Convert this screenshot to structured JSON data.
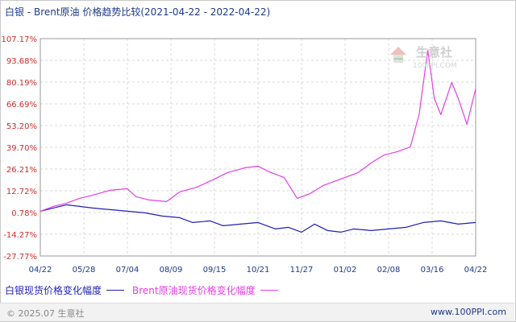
{
  "title": "白银 - Brent原油 价格趋势比较(2021-04-22 - 2022-04-22)",
  "watermark": {
    "text": "生意社",
    "url": "100PPI.COM"
  },
  "footer": {
    "copyright": "© 2025.07 生意社",
    "website": "www.100PPI.com"
  },
  "colors": {
    "silver": "#1f1fb4",
    "brent": "#e63ee6",
    "axis_red": "#d22a2a",
    "axis_blue": "#1e3a8a"
  },
  "chart_data": {
    "type": "line",
    "title": "白银 - Brent原油 价格趋势比较(2021-04-22 - 2022-04-22)",
    "ylim": [
      -27.77,
      107.17
    ],
    "y_ticks": [
      "107.17%",
      "93.68%",
      "80.19%",
      "66.69%",
      "53.20%",
      "39.70%",
      "26.21%",
      "12.72%",
      "0.78%",
      "-14.27%",
      "-27.77%"
    ],
    "x_ticks": [
      "04/22",
      "05/28",
      "07/04",
      "08/09",
      "09/15",
      "10/21",
      "11/27",
      "01/02",
      "02/08",
      "03/16",
      "04/22"
    ],
    "grid": true,
    "legend_position": "bottom-left",
    "series": [
      {
        "name": "白银现货价格变化幅度",
        "color": "#1f1fb4",
        "points": [
          [
            0,
            0
          ],
          [
            0.3,
            2
          ],
          [
            0.6,
            4
          ],
          [
            0.9,
            3
          ],
          [
            1.2,
            2
          ],
          [
            1.6,
            1
          ],
          [
            2.0,
            0
          ],
          [
            2.4,
            -1
          ],
          [
            2.8,
            -3
          ],
          [
            3.2,
            -4
          ],
          [
            3.5,
            -7
          ],
          [
            3.9,
            -6
          ],
          [
            4.2,
            -9
          ],
          [
            4.6,
            -8
          ],
          [
            5.0,
            -7
          ],
          [
            5.4,
            -11
          ],
          [
            5.7,
            -10
          ],
          [
            6.0,
            -13
          ],
          [
            6.3,
            -8
          ],
          [
            6.6,
            -12
          ],
          [
            6.9,
            -13
          ],
          [
            7.2,
            -11
          ],
          [
            7.6,
            -12
          ],
          [
            8.0,
            -11
          ],
          [
            8.4,
            -10
          ],
          [
            8.8,
            -7
          ],
          [
            9.2,
            -6
          ],
          [
            9.6,
            -8
          ],
          [
            10.0,
            -7
          ]
        ]
      },
      {
        "name": "Brent原油现货价格变化幅度",
        "color": "#e63ee6",
        "points": [
          [
            0,
            0
          ],
          [
            0.3,
            3
          ],
          [
            0.6,
            5
          ],
          [
            0.9,
            8
          ],
          [
            1.2,
            10
          ],
          [
            1.6,
            13
          ],
          [
            2.0,
            14
          ],
          [
            2.2,
            9
          ],
          [
            2.5,
            7
          ],
          [
            2.9,
            6
          ],
          [
            3.2,
            12
          ],
          [
            3.6,
            15
          ],
          [
            4.0,
            20
          ],
          [
            4.3,
            24
          ],
          [
            4.7,
            27
          ],
          [
            5.0,
            28
          ],
          [
            5.3,
            24
          ],
          [
            5.6,
            21
          ],
          [
            5.9,
            8
          ],
          [
            6.2,
            11
          ],
          [
            6.5,
            16
          ],
          [
            6.9,
            20
          ],
          [
            7.3,
            24
          ],
          [
            7.6,
            30
          ],
          [
            7.9,
            35
          ],
          [
            8.2,
            37
          ],
          [
            8.5,
            40
          ],
          [
            8.7,
            60
          ],
          [
            8.9,
            100
          ],
          [
            9.05,
            70
          ],
          [
            9.2,
            60
          ],
          [
            9.45,
            80
          ],
          [
            9.6,
            70
          ],
          [
            9.8,
            54
          ],
          [
            10.0,
            76
          ]
        ]
      }
    ]
  }
}
